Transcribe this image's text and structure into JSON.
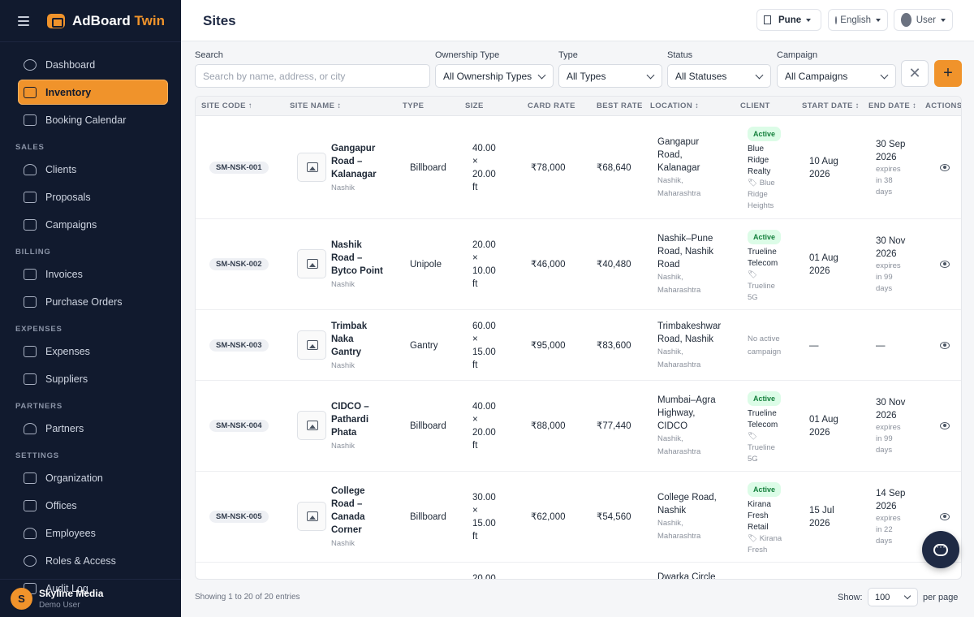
{
  "app": {
    "name_part1": "AdBoard",
    "name_part2": "Twin"
  },
  "sidebar": {
    "items": [
      {
        "type": "item",
        "label": "Dashboard",
        "icon": "dashboard-icon"
      },
      {
        "type": "item",
        "label": "Inventory",
        "icon": "cube-icon",
        "active": true
      },
      {
        "type": "item",
        "label": "Booking Calendar",
        "icon": "calendar-icon"
      },
      {
        "type": "section",
        "label": "SALES"
      },
      {
        "type": "item",
        "label": "Clients",
        "icon": "users-icon"
      },
      {
        "type": "item",
        "label": "Proposals",
        "icon": "document-icon"
      },
      {
        "type": "item",
        "label": "Campaigns",
        "icon": "megaphone-icon"
      },
      {
        "type": "section",
        "label": "BILLING"
      },
      {
        "type": "item",
        "label": "Invoices",
        "icon": "invoice-icon"
      },
      {
        "type": "item",
        "label": "Purchase Orders",
        "icon": "clipboard-icon"
      },
      {
        "type": "section",
        "label": "EXPENSES"
      },
      {
        "type": "item",
        "label": "Expenses",
        "icon": "receipt-icon"
      },
      {
        "type": "item",
        "label": "Suppliers",
        "icon": "truck-icon"
      },
      {
        "type": "section",
        "label": "PARTNERS"
      },
      {
        "type": "item",
        "label": "Partners",
        "icon": "partners-icon"
      },
      {
        "type": "section",
        "label": "SETTINGS"
      },
      {
        "type": "item",
        "label": "Organization",
        "icon": "building-icon"
      },
      {
        "type": "item",
        "label": "Offices",
        "icon": "office-icon"
      },
      {
        "type": "item",
        "label": "Employees",
        "icon": "employees-icon"
      },
      {
        "type": "item",
        "label": "Roles & Access",
        "icon": "shield-icon"
      },
      {
        "type": "item",
        "label": "Audit Log",
        "icon": "audit-icon"
      }
    ],
    "footer": {
      "avatar_letter": "S",
      "org_name": "Skyline Media",
      "user_role": "Demo User"
    }
  },
  "header": {
    "title": "Sites",
    "city": "Pune",
    "language": "English",
    "user": "User"
  },
  "filters": {
    "search_label": "Search",
    "search_placeholder": "Search by name, address, or city",
    "ownership_label": "Ownership Type",
    "ownership_value": "All Ownership Types",
    "type_label": "Type",
    "type_value": "All Types",
    "status_label": "Status",
    "status_value": "All Statuses",
    "campaign_label": "Campaign",
    "campaign_value": "All Campaigns",
    "clear_glyph": "✕",
    "add_glyph": "+"
  },
  "table": {
    "columns": [
      "SITE CODE ↑",
      "SITE NAME ↕",
      "TYPE",
      "SIZE",
      "CARD RATE",
      "BEST RATE",
      "LOCATION ↕",
      "CLIENT",
      "START DATE ↕",
      "END DATE ↕",
      "ACTIONS"
    ],
    "rows": [
      {
        "code": "SM-NSK-001",
        "name_lines": [
          "Gangapur",
          "Road –",
          "Kalanagar"
        ],
        "city": "Nashik",
        "type": "Billboard",
        "size_lines": [
          "40.00",
          "×",
          "20.00",
          "ft"
        ],
        "card_rate": "₹78,000",
        "best_rate": "₹68,640",
        "location_lines": [
          "Gangapur",
          "Road,",
          "Kalanagar"
        ],
        "location_sub": [
          "Nashik,",
          "Maharashtra"
        ],
        "status": "Active",
        "client_lines": [
          "Blue",
          "Ridge",
          "Realty"
        ],
        "campaign_lines": [
          "🏷 Blue",
          "Ridge",
          "Heights"
        ],
        "start_lines": [
          "10 Aug",
          "2026"
        ],
        "end_lines": [
          "30 Sep",
          "2026"
        ],
        "expires_lines": [
          "expires",
          "in 38",
          "days"
        ]
      },
      {
        "code": "SM-NSK-002",
        "name_lines": [
          "Nashik",
          "Road –",
          "Bytco Point"
        ],
        "city": "Nashik",
        "type": "Unipole",
        "size_lines": [
          "20.00",
          "×",
          "10.00",
          "ft"
        ],
        "card_rate": "₹46,000",
        "best_rate": "₹40,480",
        "location_lines": [
          "Nashik–Pune",
          "Road, Nashik",
          "Road"
        ],
        "location_sub": [
          "Nashik,",
          "Maharashtra"
        ],
        "status": "Active",
        "client_lines": [
          "Trueline",
          "Telecom"
        ],
        "campaign_lines": [
          "🏷",
          "Trueline",
          "5G"
        ],
        "start_lines": [
          "01 Aug",
          "2026"
        ],
        "end_lines": [
          "30 Nov",
          "2026"
        ],
        "expires_lines": [
          "expires",
          "in 99",
          "days"
        ]
      },
      {
        "code": "SM-NSK-003",
        "name_lines": [
          "Trimbak",
          "Naka",
          "Gantry"
        ],
        "city": "Nashik",
        "type": "Gantry",
        "size_lines": [
          "60.00",
          "×",
          "15.00",
          "ft"
        ],
        "card_rate": "₹95,000",
        "best_rate": "₹83,600",
        "location_lines": [
          "Trimbakeshwar",
          "Road, Nashik"
        ],
        "location_sub": [
          "Nashik,",
          "Maharashtra"
        ],
        "status": "",
        "client_lines": [],
        "campaign_lines": [],
        "no_campaign_lines": [
          "No active",
          "campaign"
        ],
        "start_lines": [
          "—"
        ],
        "end_lines": [
          "—"
        ],
        "expires_lines": []
      },
      {
        "code": "SM-NSK-004",
        "name_lines": [
          "CIDCO –",
          "Pathardi",
          "Phata"
        ],
        "city": "Nashik",
        "type": "Billboard",
        "size_lines": [
          "40.00",
          "×",
          "20.00",
          "ft"
        ],
        "card_rate": "₹88,000",
        "best_rate": "₹77,440",
        "location_lines": [
          "Mumbai–Agra",
          "Highway,",
          "CIDCO"
        ],
        "location_sub": [
          "Nashik,",
          "Maharashtra"
        ],
        "status": "Active",
        "client_lines": [
          "Trueline",
          "Telecom"
        ],
        "campaign_lines": [
          "🏷",
          "Trueline",
          "5G"
        ],
        "start_lines": [
          "01 Aug",
          "2026"
        ],
        "end_lines": [
          "30 Nov",
          "2026"
        ],
        "expires_lines": [
          "expires",
          "in 99",
          "days"
        ]
      },
      {
        "code": "SM-NSK-005",
        "name_lines": [
          "College",
          "Road –",
          "Canada",
          "Corner"
        ],
        "city": "Nashik",
        "type": "Billboard",
        "size_lines": [
          "30.00",
          "×",
          "15.00",
          "ft"
        ],
        "card_rate": "₹62,000",
        "best_rate": "₹54,560",
        "location_lines": [
          "College Road,",
          "Nashik"
        ],
        "location_sub": [
          "Nashik,",
          "Maharashtra"
        ],
        "status": "Active",
        "client_lines": [
          "Kirana",
          "Fresh",
          "Retail"
        ],
        "campaign_lines": [
          "🏷 Kirana",
          "Fresh"
        ],
        "start_lines": [
          "15 Jul",
          "2026"
        ],
        "end_lines": [
          "14 Sep",
          "2026"
        ],
        "expires_lines": [
          "expires",
          "in 22",
          "days"
        ]
      },
      {
        "code": "",
        "name_lines": [],
        "city": "",
        "type": "",
        "size_lines": [
          "20.00"
        ],
        "card_rate": "",
        "best_rate": "",
        "location_lines": [
          "Dwarka Circle"
        ],
        "location_sub": [],
        "status": "",
        "client_lines": [],
        "campaign_lines": [],
        "start_lines": [],
        "end_lines": [],
        "expires_lines": []
      }
    ]
  },
  "footer": {
    "entries": "Showing 1 to 20 of 20 entries",
    "show_label": "Show:",
    "page_size": "100",
    "per_page": "per page"
  }
}
